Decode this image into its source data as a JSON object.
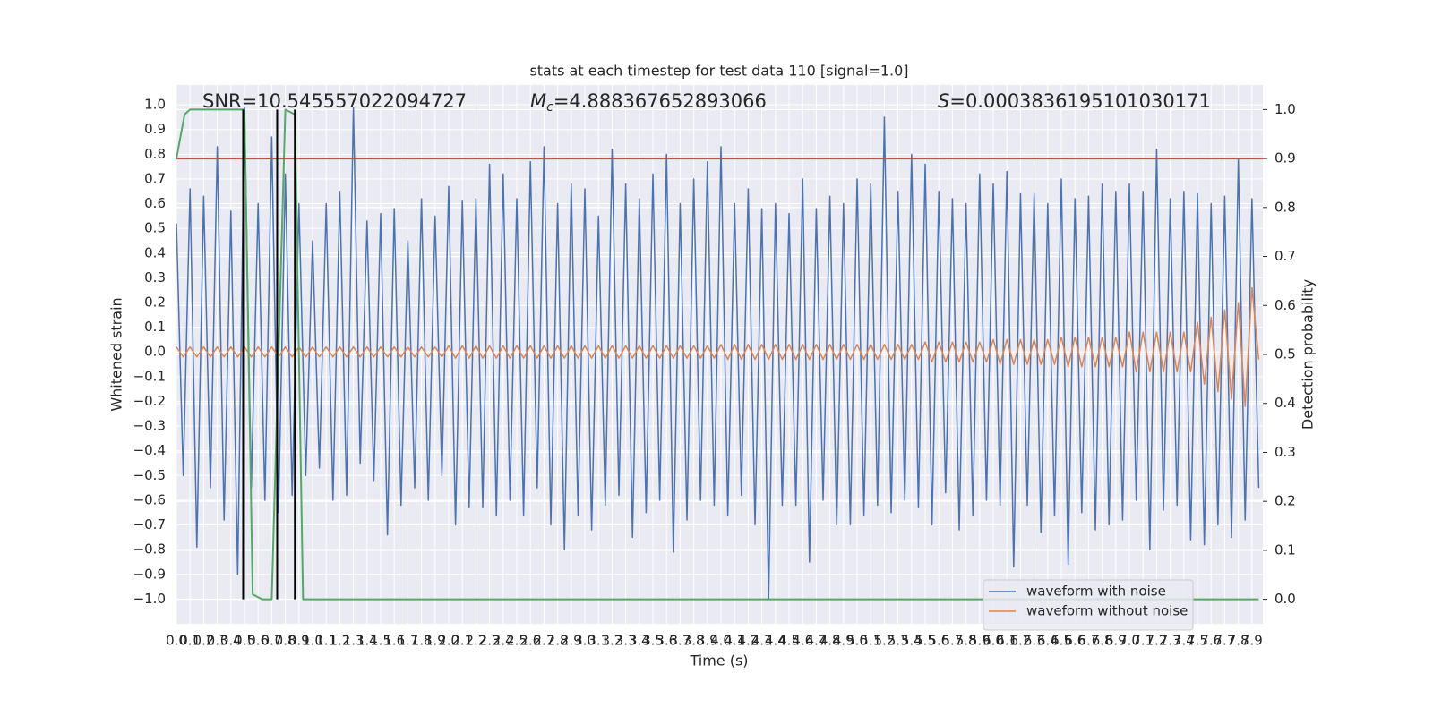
{
  "chart_data": {
    "type": "line",
    "title": "stats at each timestep for test data 110 [signal=1.0]",
    "xlabel": "Time (s)",
    "ylabel": "Whitened strain",
    "y2label": "Detection probability",
    "annotations": [
      {
        "text": "SNR=10.545557022094727"
      },
      {
        "symbol": "M",
        "subscript": "c",
        "text": "=4.888367652893066"
      },
      {
        "symbol": "S",
        "text": "=0.0003836195101030171"
      }
    ],
    "x": [
      0,
      0.05,
      0.1,
      0.15,
      0.2,
      0.25,
      0.3,
      0.35,
      0.4,
      0.45,
      0.5,
      0.55,
      0.6,
      0.65,
      0.7,
      0.75,
      0.8,
      0.85,
      0.9,
      0.95,
      1,
      1.05,
      1.1,
      1.15,
      1.2,
      1.25,
      1.3,
      1.35,
      1.4,
      1.45,
      1.5,
      1.55,
      1.6,
      1.65,
      1.7,
      1.75,
      1.8,
      1.85,
      1.9,
      1.95,
      2,
      2.05,
      2.1,
      2.15,
      2.2,
      2.25,
      2.3,
      2.35,
      2.4,
      2.45,
      2.5,
      2.55,
      2.6,
      2.65,
      2.7,
      2.75,
      2.8,
      2.85,
      2.9,
      2.95,
      3,
      3.05,
      3.1,
      3.15,
      3.2,
      3.25,
      3.3,
      3.35,
      3.4,
      3.45,
      3.5,
      3.55,
      3.6,
      3.65,
      3.7,
      3.75,
      3.8,
      3.85,
      3.9,
      3.95,
      4,
      4.05,
      4.1,
      4.15,
      4.2,
      4.25,
      4.3,
      4.35,
      4.4,
      4.45,
      4.5,
      4.55,
      4.6,
      4.65,
      4.7,
      4.75,
      4.8,
      4.85,
      4.9,
      4.95,
      5,
      5.05,
      5.1,
      5.15,
      5.2,
      5.25,
      5.3,
      5.35,
      5.4,
      5.45,
      5.5,
      5.55,
      5.6,
      5.65,
      5.7,
      5.75,
      5.8,
      5.85,
      5.9,
      5.95,
      6,
      6.05,
      6.1,
      6.15,
      6.2,
      6.25,
      6.3,
      6.35,
      6.4,
      6.45,
      6.5,
      6.55,
      6.6,
      6.65,
      6.7,
      6.75,
      6.8,
      6.85,
      6.9,
      6.95,
      7,
      7.05,
      7.1,
      7.15,
      7.2,
      7.25,
      7.3,
      7.35,
      7.4,
      7.45,
      7.5,
      7.55,
      7.6,
      7.65,
      7.7,
      7.75,
      7.8,
      7.85,
      7.9,
      7.95
    ],
    "series": [
      {
        "name": "waveform with noise",
        "color": "#4c72b0",
        "values": [
          0.52,
          -0.5,
          0.66,
          -0.79,
          0.63,
          -0.55,
          0.83,
          -0.68,
          0.57,
          -0.9,
          0.99,
          -0.55,
          0.6,
          -0.6,
          0.87,
          -0.65,
          0.72,
          -0.58,
          0.6,
          -0.5,
          0.45,
          -0.47,
          0.6,
          -0.6,
          0.65,
          -0.58,
          0.99,
          -0.45,
          0.53,
          -0.52,
          0.56,
          -0.74,
          0.58,
          -0.62,
          0.45,
          -0.55,
          0.62,
          -0.6,
          0.55,
          -0.5,
          0.67,
          -0.7,
          0.61,
          -0.63,
          0.62,
          -0.63,
          0.76,
          -0.66,
          0.72,
          -0.6,
          0.62,
          -0.66,
          0.77,
          -0.55,
          0.83,
          -0.7,
          0.6,
          -0.8,
          0.68,
          -0.66,
          0.66,
          -0.72,
          0.55,
          -0.62,
          0.82,
          -0.58,
          0.68,
          -0.75,
          0.62,
          -0.65,
          0.72,
          -0.6,
          0.8,
          -0.81,
          0.6,
          -0.68,
          0.7,
          -0.6,
          0.77,
          -0.62,
          0.83,
          -0.66,
          0.6,
          -0.58,
          0.66,
          -0.7,
          0.58,
          -1.0,
          0.6,
          -0.62,
          0.56,
          -0.62,
          0.7,
          -0.85,
          0.58,
          -0.6,
          0.63,
          -0.7,
          0.6,
          -0.7,
          0.7,
          -0.66,
          0.68,
          -0.62,
          0.95,
          -0.65,
          0.65,
          -0.6,
          0.8,
          -0.63,
          0.76,
          -0.7,
          0.65,
          -0.57,
          0.62,
          -0.72,
          0.6,
          -0.66,
          0.72,
          -0.6,
          0.68,
          -0.62,
          0.73,
          -0.87,
          0.64,
          -0.62,
          0.64,
          -0.73,
          0.6,
          -0.66,
          0.7,
          -0.86,
          0.62,
          -0.65,
          0.63,
          -0.72,
          0.68,
          -0.7,
          0.65,
          -0.68,
          0.68,
          -0.6,
          0.65,
          -0.8,
          0.82,
          -0.64,
          0.62,
          -0.62,
          0.65,
          -0.76,
          0.64,
          -0.78,
          0.6,
          -0.7,
          0.63,
          -0.75,
          0.78,
          -0.68,
          0.62,
          -0.55
        ]
      },
      {
        "name": "waveform without noise",
        "color": "#dd8452",
        "values": [
          0.02,
          -0.02,
          0.02,
          -0.02,
          0.02,
          -0.02,
          0.02,
          -0.02,
          0.02,
          -0.02,
          0.02,
          -0.02,
          0.02,
          -0.02,
          0.02,
          -0.02,
          0.02,
          -0.02,
          0.02,
          -0.02,
          0.02,
          -0.02,
          0.02,
          -0.02,
          0.02,
          -0.02,
          0.02,
          -0.02,
          0.02,
          -0.02,
          0.02,
          -0.02,
          0.02,
          -0.02,
          0.02,
          -0.02,
          0.02,
          -0.02,
          0.02,
          -0.02,
          0.025,
          -0.025,
          0.025,
          -0.025,
          0.025,
          -0.025,
          0.025,
          -0.025,
          0.025,
          -0.025,
          0.025,
          -0.025,
          0.025,
          -0.025,
          0.025,
          -0.025,
          0.025,
          -0.025,
          0.025,
          -0.025,
          0.025,
          -0.025,
          0.025,
          -0.025,
          0.025,
          -0.025,
          0.025,
          -0.025,
          0.025,
          -0.025,
          0.025,
          -0.025,
          0.025,
          -0.025,
          0.025,
          -0.025,
          0.025,
          -0.025,
          0.025,
          -0.025,
          0.03,
          -0.03,
          0.03,
          -0.03,
          0.03,
          -0.03,
          0.03,
          -0.03,
          0.03,
          -0.03,
          0.03,
          -0.03,
          0.03,
          -0.03,
          0.03,
          -0.03,
          0.03,
          -0.03,
          0.03,
          -0.03,
          0.03,
          -0.03,
          0.03,
          -0.03,
          0.03,
          -0.03,
          0.03,
          -0.03,
          0.03,
          -0.03,
          0.04,
          -0.04,
          0.04,
          -0.04,
          0.04,
          -0.04,
          0.04,
          -0.04,
          0.04,
          -0.04,
          0.05,
          -0.05,
          0.05,
          -0.05,
          0.05,
          -0.05,
          0.05,
          -0.05,
          0.05,
          -0.05,
          0.06,
          -0.06,
          0.06,
          -0.06,
          0.06,
          -0.06,
          0.06,
          -0.06,
          0.06,
          -0.06,
          0.08,
          -0.08,
          0.08,
          -0.08,
          0.08,
          -0.08,
          0.08,
          -0.08,
          0.08,
          -0.08,
          0.12,
          -0.13,
          0.14,
          -0.16,
          0.17,
          -0.19,
          0.2,
          -0.22,
          0.26,
          -0.03
        ]
      },
      {
        "color": "#55a868",
        "axis": "y2",
        "x": [
          0,
          0.06,
          0.1,
          0.49,
          0.5,
          0.56,
          0.63,
          0.7,
          0.8,
          0.87,
          0.93,
          0.99,
          7.95
        ],
        "values": [
          0.9,
          0.99,
          1.0,
          1.0,
          0.99,
          0.01,
          0.0,
          0.0,
          1.0,
          0.99,
          0.0,
          0.0,
          0.0
        ]
      }
    ],
    "hlines": [
      {
        "y": 0.9,
        "axis": "y2",
        "color": "#c44e52"
      }
    ],
    "vlines": {
      "x": [
        0.49,
        0.74,
        0.87
      ],
      "ymin": 0,
      "ymax": 1,
      "axis": "y2",
      "color": "#000000"
    },
    "xlim": [
      0,
      7.98
    ],
    "ylim": [
      -1.1,
      1.08
    ],
    "y2lim": [
      -0.05,
      1.05
    ],
    "xticks": [
      {
        "value": 0,
        "label": "0.0"
      },
      0.1,
      0.2,
      0.3,
      0.4,
      0.5,
      0.6,
      0.7,
      0.8,
      0.9,
      {
        "value": 1,
        "label": "1.0"
      },
      1.1,
      1.2,
      1.3,
      1.4,
      1.5,
      1.6,
      1.7,
      1.8,
      1.9,
      {
        "value": 2,
        "label": "2.0"
      },
      2.1,
      2.2,
      2.3,
      2.4,
      2.5,
      2.6,
      2.7,
      2.8,
      2.9,
      {
        "value": 3,
        "label": "3.0"
      },
      3.1,
      3.2,
      3.3,
      3.4,
      3.5,
      3.6,
      3.7,
      3.8,
      3.9,
      {
        "value": 4,
        "label": "4.0"
      },
      4.1,
      4.2,
      4.3,
      4.4,
      4.5,
      4.6,
      4.7,
      4.8,
      4.9,
      {
        "value": 5,
        "label": "5.0"
      },
      5.1,
      5.2,
      5.3,
      5.4,
      5.5,
      5.6,
      5.7,
      5.8,
      5.9,
      {
        "value": 6,
        "label": "6.0"
      },
      6.1,
      6.2,
      6.3,
      6.4,
      6.5,
      6.6,
      6.7,
      6.8,
      6.9,
      {
        "value": 7,
        "label": "7.0"
      },
      7.1,
      7.2,
      7.3,
      7.4,
      7.5,
      7.6,
      7.7,
      7.8,
      7.9
    ],
    "yticks": [
      {
        "value": -1,
        "label": "−1.0"
      },
      {
        "value": -0.9,
        "label": "−0.9"
      },
      {
        "value": -0.8,
        "label": "−0.8"
      },
      {
        "value": -0.7,
        "label": "−0.7"
      },
      {
        "value": -0.6,
        "label": "−0.6"
      },
      {
        "value": -0.5,
        "label": "−0.5"
      },
      {
        "value": -0.4,
        "label": "−0.4"
      },
      {
        "value": -0.3,
        "label": "−0.3"
      },
      {
        "value": -0.2,
        "label": "−0.2"
      },
      {
        "value": -0.1,
        "label": "−0.1"
      },
      {
        "value": 0,
        "label": "0.0"
      },
      0.1,
      0.2,
      0.3,
      0.4,
      0.5,
      0.6,
      0.7,
      0.8,
      0.9,
      {
        "value": 1,
        "label": "1.0"
      }
    ],
    "y2ticks": [
      {
        "value": 0,
        "label": "0.0"
      },
      0.1,
      0.2,
      0.3,
      0.4,
      0.5,
      0.6,
      0.7,
      0.8,
      0.9,
      {
        "value": 1,
        "label": "1.0"
      }
    ],
    "grid": true,
    "legend": "lower right"
  }
}
